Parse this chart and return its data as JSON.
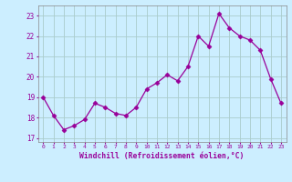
{
  "x": [
    0,
    1,
    2,
    3,
    4,
    5,
    6,
    7,
    8,
    9,
    10,
    11,
    12,
    13,
    14,
    15,
    16,
    17,
    18,
    19,
    20,
    21,
    22,
    23
  ],
  "y": [
    19.0,
    18.1,
    17.4,
    17.6,
    17.9,
    18.7,
    18.5,
    18.2,
    18.1,
    18.5,
    19.4,
    19.7,
    20.1,
    19.8,
    20.5,
    22.0,
    21.5,
    23.1,
    22.4,
    22.0,
    21.8,
    21.3,
    19.9,
    18.7
  ],
  "line_color": "#990099",
  "marker": "D",
  "marker_size": 2.5,
  "bg_color": "#cceeff",
  "grid_color": "#aacccc",
  "xlabel": "Windchill (Refroidissement éolien,°C)",
  "xlabel_color": "#990099",
  "tick_color": "#990099",
  "ylim": [
    16.8,
    23.5
  ],
  "yticks": [
    17,
    18,
    19,
    20,
    21,
    22,
    23
  ],
  "xlim": [
    -0.5,
    23.5
  ],
  "xticks": [
    0,
    1,
    2,
    3,
    4,
    5,
    6,
    7,
    8,
    9,
    10,
    11,
    12,
    13,
    14,
    15,
    16,
    17,
    18,
    19,
    20,
    21,
    22,
    23
  ]
}
